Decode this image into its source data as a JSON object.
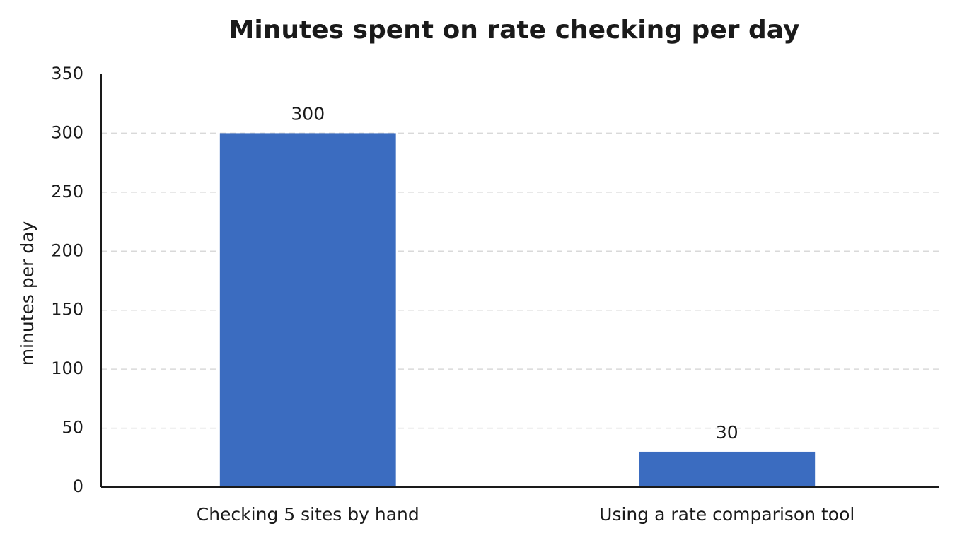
{
  "chart_data": {
    "type": "bar",
    "title": "Minutes spent on rate checking per day",
    "y_label": "minutes per day",
    "categories": [
      "Checking 5 sites by hand",
      "Using a rate comparison tool"
    ],
    "values": [
      300,
      30
    ],
    "color": "#3b6cc0",
    "ylim": [
      0,
      350
    ],
    "yticks": [
      0,
      50,
      100,
      150,
      200,
      250,
      300,
      350
    ],
    "grid": true
  }
}
